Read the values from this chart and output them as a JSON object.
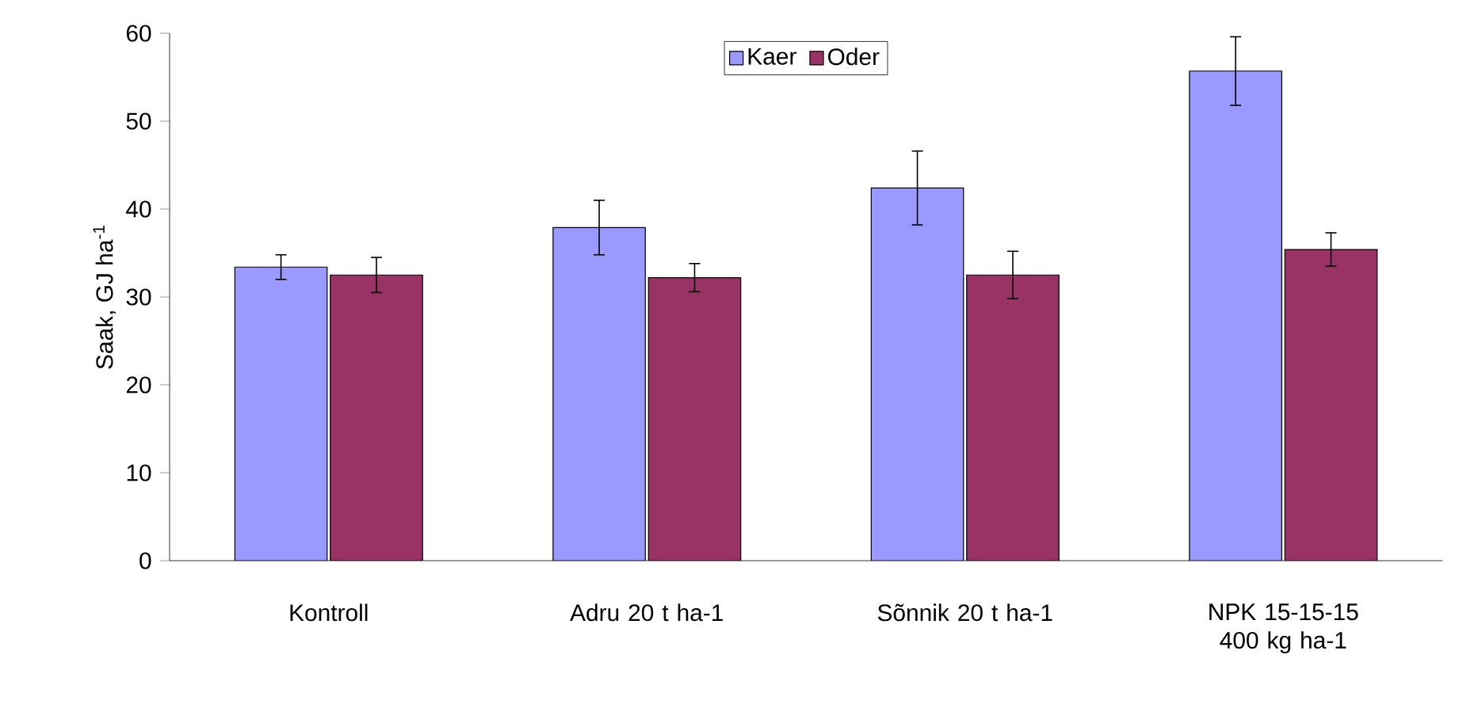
{
  "chart_data": {
    "type": "bar",
    "ylabel": "Saak, GJ ha$^{-1}$",
    "categories": [
      "Kontroll",
      "Adru 20 t ha-1",
      "Sõnnik 20 t ha-1",
      "NPK 15-15-15 400 kg ha-1"
    ],
    "series": [
      {
        "name": "Kaer",
        "color": "#9999ff",
        "values": [
          33.4,
          37.9,
          42.4,
          55.7
        ],
        "errors": [
          1.4,
          3.1,
          4.2,
          3.9
        ]
      },
      {
        "name": "Oder",
        "color": "#993366",
        "values": [
          32.5,
          32.2,
          32.5,
          35.4
        ],
        "errors": [
          2.0,
          1.6,
          2.7,
          1.9
        ]
      }
    ],
    "ylim": [
      0,
      60
    ],
    "yticks": [
      0,
      10,
      20,
      30,
      40,
      50,
      60
    ],
    "grid": false,
    "legend": "top"
  }
}
